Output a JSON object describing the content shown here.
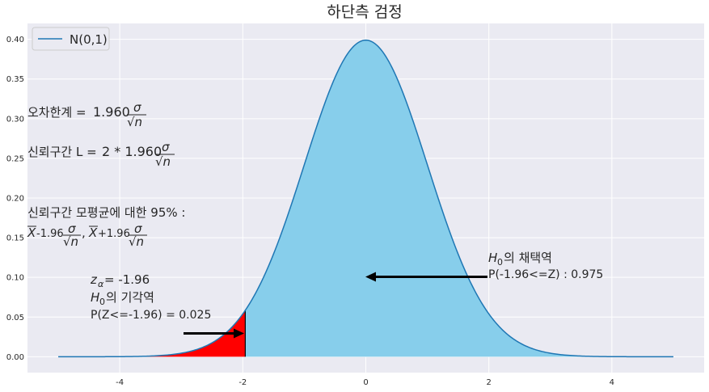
{
  "chart_data": {
    "type": "area",
    "title": "하단측 검정",
    "xlabel": "",
    "ylabel": "",
    "xlim": [
      -5.5,
      5.5
    ],
    "ylim": [
      -0.02,
      0.42
    ],
    "grid": true,
    "legend": {
      "position": "top-left",
      "entries": [
        "N(0,1)"
      ]
    },
    "x_ticks": [
      -4,
      -2,
      0,
      2,
      4
    ],
    "y_ticks": [
      0.0,
      0.05,
      0.1,
      0.15,
      0.2,
      0.25,
      0.3,
      0.35,
      0.4
    ],
    "x_tick_labels": [
      "-4",
      "-2",
      "0",
      "2",
      "4"
    ],
    "y_tick_labels": [
      "0.00",
      "0.05",
      "0.10",
      "0.15",
      "0.20",
      "0.25",
      "0.30",
      "0.35",
      "0.40"
    ],
    "series": [
      {
        "name": "N(0,1)",
        "kind": "normal_pdf",
        "mean": 0,
        "sd": 1,
        "x_range": [
          -5,
          5
        ],
        "color": "#1f77b4"
      }
    ],
    "fills": [
      {
        "region": "rejection",
        "x_from": -5,
        "x_to": -1.96,
        "color": "#ff0000"
      },
      {
        "region": "acceptance",
        "x_from": -1.96,
        "x_to": 5,
        "color": "#87ceeb"
      }
    ],
    "critical_value": -1.96,
    "annotations": {
      "error_limit": {
        "prefix": "오차한계 = ",
        "coef": "1.960",
        "num": "σ",
        "den": "√n"
      },
      "ci_length": {
        "prefix": "신뢰구간 L = ",
        "coef": "2 * 1.960",
        "num": "σ",
        "den": "√n"
      },
      "ci_mean": {
        "line1": "신뢰구간 모평균에 대한 95% :",
        "xbar": "X",
        "minus": "-1.96",
        "plus": "+1.96",
        "comma": ",",
        "num": "σ",
        "den": "√n"
      },
      "z_alpha": {
        "label": "z",
        "sub": "α",
        "value": " = -1.96"
      },
      "reject": {
        "h": "H",
        "sub": "0",
        "text": "의 기각역",
        "prob": "P(Z<=-1.96) = 0.025"
      },
      "accept": {
        "h": "H",
        "sub": "0",
        "text": "의 채택역",
        "prob": "P(-1.96<=Z) : 0.975"
      }
    }
  }
}
